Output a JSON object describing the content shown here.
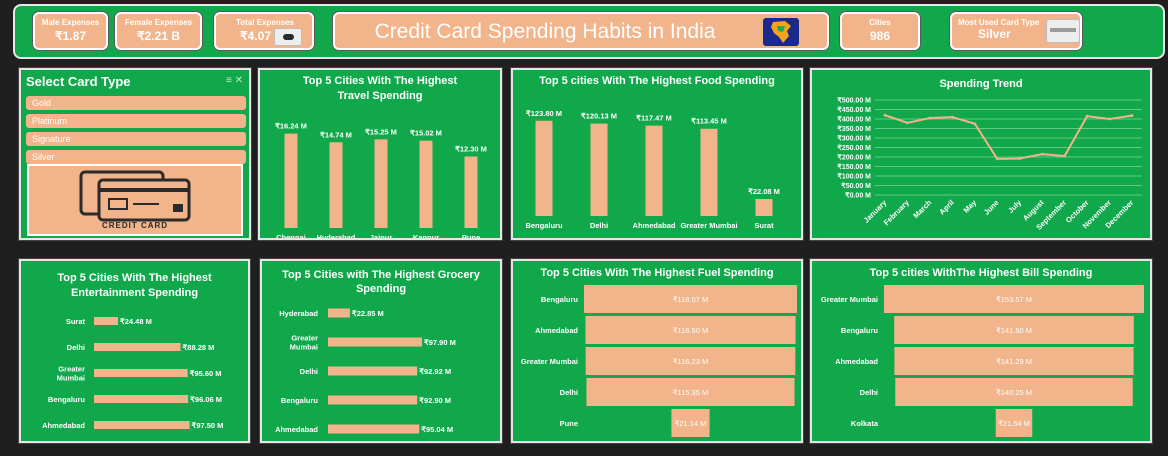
{
  "header": {
    "male_label": "Male Expenses",
    "male_value": "₹1.87",
    "female_label": "Female Expenses",
    "female_value": "₹2.21 B",
    "total_label": "Total Expenses",
    "total_value": "₹4.07",
    "title": "Credit Card Spending Habits in India",
    "cities_label": "Cities",
    "cities_value": "986",
    "card_type_label": "Most Used Card Type",
    "card_type_value": "Silver"
  },
  "slicer": {
    "title": "Select Card Type",
    "items": [
      "Gold",
      "Platinum",
      "Signature",
      "Silver"
    ],
    "image_caption": "CREDIT CARD"
  },
  "colors": {
    "panel": "#11a84b",
    "bar": "#f2b48a",
    "line": "#f2b48a",
    "text": "#ffffff",
    "background": "#1f1f1f"
  },
  "chart_data": [
    {
      "id": "travel",
      "type": "bar",
      "title": "Top 5 Cities With The Highest Travel Spending",
      "title_lines": [
        "Top 5 Cities With The Highest",
        "Travel Spending"
      ],
      "categories": [
        "Chennai",
        "Hyderabad",
        "Jaipur",
        "Kanpur",
        "Pune"
      ],
      "values": [
        16.24,
        14.74,
        15.25,
        15.02,
        12.3
      ],
      "labels": [
        "₹16.24 M",
        "₹14.74 M",
        "₹15.25 M",
        "₹15.02 M",
        "₹12.30 M"
      ]
    },
    {
      "id": "food",
      "type": "bar",
      "title": "Top 5 cities With The Highest Food Spending",
      "title_lines": [
        "Top 5 cities With The Highest Food Spending"
      ],
      "categories": [
        "Bengaluru",
        "Delhi",
        "Ahmedabad",
        "Greater Mumbai",
        "Surat"
      ],
      "values": [
        123.8,
        120.13,
        117.47,
        113.45,
        22.08
      ],
      "labels": [
        "₹123.80 M",
        "₹120.13 M",
        "₹117.47 M",
        "₹113.45 M",
        "₹22.08 M"
      ]
    },
    {
      "id": "trend",
      "type": "line",
      "title": "Spending Trend",
      "categories": [
        "January",
        "February",
        "March",
        "April",
        "May",
        "June",
        "July",
        "August",
        "September",
        "October",
        "November",
        "December"
      ],
      "values": [
        420,
        380,
        405,
        410,
        375,
        190,
        192,
        215,
        205,
        415,
        400,
        418
      ],
      "ylim": [
        0,
        500
      ],
      "yticks": [
        "₹500.00 M",
        "₹450.00 M",
        "₹400.00 M",
        "₹350.00 M",
        "₹300.00 M",
        "₹250.00 M",
        "₹200.00 M",
        "₹150.00 M",
        "₹100.00 M",
        "₹50.00 M",
        "₹0.00 M"
      ],
      "grid": true
    },
    {
      "id": "entertainment",
      "type": "bar",
      "orientation": "horizontal",
      "title": "Top 5 Cities With The Highest Entertainment Spending",
      "title_lines": [
        "Top 5 Cities With The Highest",
        "Entertainment Spending"
      ],
      "categories": [
        "Surat",
        "Delhi",
        "Greater Mumbai",
        "Bengaluru",
        "Ahmedabad"
      ],
      "values": [
        24.48,
        88.28,
        95.6,
        96.06,
        97.5
      ],
      "labels": [
        "₹24.48 M",
        "₹88.28 M",
        "₹95.60 M",
        "₹96.06 M",
        "₹97.50 M"
      ]
    },
    {
      "id": "grocery",
      "type": "bar",
      "orientation": "horizontal",
      "title": "Top 5 Cities with The Highest Grocery Spending",
      "title_lines": [
        "Top 5 Cities with The Highest Grocery",
        "Spending"
      ],
      "categories": [
        "Hyderabad",
        "Greater Mumbai",
        "Delhi",
        "Bengaluru",
        "Ahmedabad"
      ],
      "values": [
        22.85,
        97.9,
        92.92,
        92.9,
        95.04
      ],
      "labels": [
        "₹22.85 M",
        "₹97.90 M",
        "₹92.92 M",
        "₹92.90 M",
        "₹95.04 M"
      ]
    },
    {
      "id": "fuel",
      "type": "bar",
      "orientation": "horizontal",
      "title": "Top 5 Cities With The Highest Fuel Spending",
      "title_lines": [
        "Top 5 Cities With The Highest Fuel Spending"
      ],
      "categories": [
        "Bengaluru",
        "Ahmedabad",
        "Greater Mumbai",
        "Delhi",
        "Pune"
      ],
      "values": [
        118.07,
        116.5,
        116.23,
        115.35,
        21.14
      ],
      "labels": [
        "₹118.07 M",
        "₹116.50 M",
        "₹116.23 M",
        "₹115.35 M",
        "₹21.14 M"
      ]
    },
    {
      "id": "bill",
      "type": "bar",
      "orientation": "horizontal",
      "title": "Top 5 cities WithThe Highest Bill Spending",
      "title_lines": [
        "Top 5 cities WithThe Highest Bill Spending"
      ],
      "categories": [
        "Greater Mumbai",
        "Bengaluru",
        "Ahmedabad",
        "Delhi",
        "Kolkata"
      ],
      "values": [
        153.57,
        141.5,
        141.29,
        140.25,
        21.54
      ],
      "labels": [
        "₹153.57 M",
        "₹141.50 M",
        "₹141.29 M",
        "₹140.25 M",
        "₹21.54 M"
      ]
    }
  ]
}
